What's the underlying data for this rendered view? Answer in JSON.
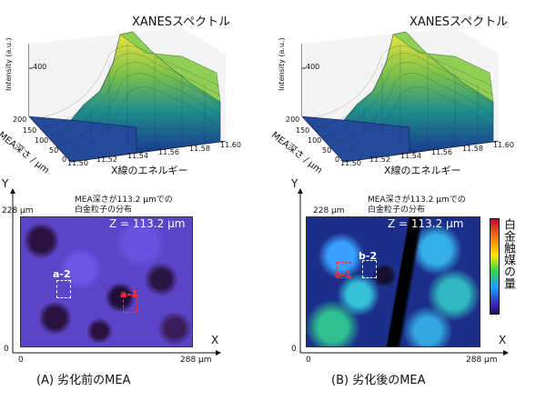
{
  "panels": [
    {
      "id": "A",
      "xanes": {
        "title": "XANESスペクトル",
        "ylabel": "Intensity (a.u.)",
        "ytick": "400",
        "xlabel": "X線のエネルギー",
        "xticks": [
          "11.50",
          "11.52",
          "11.54",
          "11.56",
          "11.58",
          "11.60"
        ],
        "depth_label": "MEA深さ / μm",
        "depth_ticks": [
          "200",
          "150",
          "100",
          "50",
          "0"
        ]
      },
      "map": {
        "title_line1": "MEA深さが113.2 μmでの",
        "title_line2": "白金粒子の分布",
        "z_label": "Z = 113.2 μm",
        "y_axis": "Y",
        "x_axis": "X",
        "y_top": "228 μm",
        "x_right": "288 μm",
        "origin_x": "0",
        "origin_y": "0",
        "markers": [
          "a-2",
          "a-1"
        ]
      },
      "caption": "(A) 劣化前のMEA"
    },
    {
      "id": "B",
      "xanes": {
        "title": "XANESスペクトル",
        "ylabel": "Intensity (a.u.)",
        "ytick": "400",
        "xlabel": "X線のエネルギー",
        "xticks": [
          "11.50",
          "11.52",
          "11.54",
          "11.56",
          "11.58",
          "11.60"
        ],
        "depth_label": "MEA深さ / μm",
        "depth_ticks": [
          "200",
          "150",
          "100",
          "50",
          "0"
        ]
      },
      "map": {
        "title_line1": "MEA深さが113.2 μmでの",
        "title_line2": "白金粒子の分布",
        "z_label": "Z = 113.2 μm",
        "y_axis": "Y",
        "x_axis": "X",
        "y_top": "228 μm",
        "x_right": "288 μm",
        "origin_x": "0",
        "origin_y": "0",
        "markers": [
          "b-2",
          "b-1"
        ]
      },
      "caption": "(B) 劣化後のMEA"
    }
  ],
  "colorbar": {
    "label": "白金触媒の量"
  }
}
